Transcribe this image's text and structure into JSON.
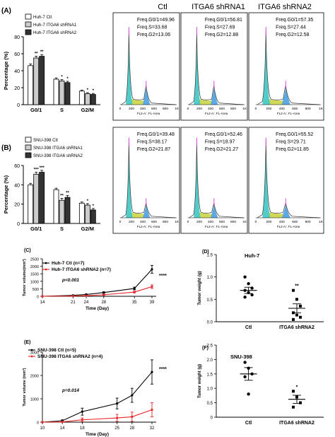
{
  "panel_letters": {
    "A": "(A)",
    "B": "(B)",
    "C": "(C)",
    "D": "(D)",
    "E": "(E)",
    "F": "(F)"
  },
  "flow_titles": [
    "Ctl",
    "ITGA6 shRNA1",
    "ITGA6 shRNA2"
  ],
  "flow_axis": {
    "xlabel": "FL2-A:: FL-Area",
    "ticks": [
      "0",
      "200",
      "400",
      "600",
      "800",
      "1K"
    ]
  },
  "colors": {
    "ctl": "#ffffff",
    "sh1": "#cccccc",
    "sh2": "#333333",
    "red": "#e8262a",
    "black": "#000000",
    "g1_peak": "#3ec7c2",
    "s_phase": "#c8d23a",
    "g2_peak": "#4aa0e0",
    "marker": "#d646d6"
  },
  "chart_data": [
    {
      "id": "A",
      "type": "bar",
      "ylabel": "Percentage (%)",
      "ylim": [
        0,
        80
      ],
      "yticks": [
        "0",
        "20",
        "40",
        "60",
        "80"
      ],
      "categories": [
        "G0/1",
        "S",
        "G2/M"
      ],
      "series": [
        {
          "name": "Huh-7 Ctl",
          "values": [
            46,
            30,
            16
          ],
          "errors": [
            2,
            1.5,
            1.2
          ]
        },
        {
          "name": "Huh-7 ITGA6 shRNA1",
          "values": [
            55,
            28,
            13
          ],
          "errors": [
            2,
            1.5,
            1.2
          ]
        },
        {
          "name": "Huh-7 ITGA6 shRNA2",
          "values": [
            57,
            26,
            12
          ],
          "errors": [
            2,
            1.5,
            1.2
          ]
        }
      ],
      "significance": [
        [
          "",
          "**",
          "**"
        ],
        [
          "",
          "*",
          "*"
        ],
        [
          "",
          "*",
          "*"
        ]
      ],
      "flow_stats": [
        [
          "Freq.G0/1=49.96",
          "Freq.S=33.68",
          "Freq.G2=13.06"
        ],
        [
          "Freq.G0/1=56.81",
          "Freq.S=27.69",
          "Freq.G2=12.88"
        ],
        [
          "Freq.G0/1=57.35",
          "Freq.S=27.44",
          "Freq.G2=12.58"
        ]
      ]
    },
    {
      "id": "B",
      "type": "bar",
      "ylabel": "Percentage (%)",
      "ylim": [
        0,
        60
      ],
      "yticks": [
        "0",
        "20",
        "40",
        "60"
      ],
      "categories": [
        "G0/1",
        "S",
        "G2/M"
      ],
      "series": [
        {
          "name": "SNU-398 Ctl",
          "values": [
            40,
            35,
            21
          ],
          "errors": [
            1.5,
            1.5,
            1.2
          ]
        },
        {
          "name": "SNU-398 ITGA6 shRNA1",
          "values": [
            51,
            24,
            19
          ],
          "errors": [
            2,
            2,
            1.5
          ]
        },
        {
          "name": "SNU-398 ITGA6 shRNA2",
          "values": [
            53,
            27,
            14
          ],
          "errors": [
            2,
            2,
            1.5
          ]
        }
      ],
      "significance": [
        [
          "",
          "***",
          "***"
        ],
        [
          "",
          "**",
          "**"
        ],
        [
          "",
          "*",
          "*"
        ]
      ],
      "flow_stats": [
        [
          "Freq.G0/1=39.48",
          "Freq.S=38.17",
          "Freq.G2=21.87"
        ],
        [
          "Freq.G0/1=52.46",
          "Freq.S=18.97",
          "Freq.G2=21.27"
        ],
        [
          "Freq.G0/1=55.52",
          "Freq.S=29.71",
          "Freq.G2=11.85"
        ]
      ]
    },
    {
      "id": "C",
      "type": "line",
      "xlabel": "Time (Day)",
      "ylabel": "Tumor volume(mm³)",
      "x": [
        14,
        21,
        24,
        28,
        35,
        39
      ],
      "xlim": [
        14,
        39
      ],
      "ylim": [
        0,
        2500
      ],
      "yticks": [
        "0",
        "500",
        "1000",
        "1500",
        "2000",
        "2500"
      ],
      "series": [
        {
          "name": "Huh-7 Ctl (n=7)",
          "values": [
            0,
            60,
            120,
            250,
            520,
            1800
          ],
          "errors": [
            0,
            20,
            30,
            50,
            90,
            260
          ]
        },
        {
          "name": "Huh-7 ITGA6 shRNA2 (n=7)",
          "values": [
            0,
            20,
            40,
            100,
            280,
            640
          ],
          "errors": [
            0,
            10,
            15,
            30,
            60,
            120
          ]
        }
      ],
      "annotation": "p<0.001",
      "sig": "****"
    },
    {
      "id": "D",
      "type": "scatter",
      "title": "Huh-7",
      "ylabel": "Tumor weight (g)",
      "ylim": [
        0,
        1.5
      ],
      "yticks": [
        "0.0",
        "0.5",
        "1.0",
        "1.5"
      ],
      "categories": [
        "Ctl",
        "ITGA6 shRNA2"
      ],
      "points": [
        [
          1.0,
          0.85,
          0.75,
          0.7,
          0.65,
          0.6,
          0.55
        ],
        [
          0.7,
          0.5,
          0.35,
          0.2,
          0.15,
          0.1,
          0.05
        ]
      ],
      "means": [
        0.7,
        0.3
      ],
      "errors": [
        0.07,
        0.1
      ],
      "sig": "**"
    },
    {
      "id": "E",
      "type": "line",
      "xlabel": "Time (Day)",
      "ylabel": "Tumor volume (mm³)",
      "x": [
        10,
        14,
        18,
        25,
        28,
        32
      ],
      "xlim": [
        10,
        32
      ],
      "ylim": [
        0,
        3000
      ],
      "yticks": [
        "0",
        "1000",
        "2000",
        "3000"
      ],
      "series": [
        {
          "name": "SNU-398 Ctl (n=5)",
          "values": [
            0,
            60,
            450,
            800,
            1150,
            2150
          ],
          "errors": [
            0,
            40,
            150,
            230,
            300,
            520
          ]
        },
        {
          "name": "SNU-398 ITGA6 shRNA2 (n=4)",
          "values": [
            0,
            10,
            100,
            180,
            230,
            530
          ],
          "errors": [
            0,
            10,
            80,
            150,
            200,
            300
          ]
        }
      ],
      "annotation": "p=0.014",
      "sig": "****"
    },
    {
      "id": "F",
      "type": "scatter",
      "title": "SNU-398",
      "ylabel": "Tumor weight (g)",
      "ylim": [
        0,
        2.5
      ],
      "yticks": [
        "0",
        "0.5",
        "1.0",
        "1.5",
        "2.0",
        "2.5"
      ],
      "categories": [
        "Ctl",
        "ITGA6 shRNA2"
      ],
      "points": [
        [
          1.9,
          1.7,
          1.5,
          1.4,
          0.8
        ],
        [
          0.9,
          0.7,
          0.5,
          0.35
        ]
      ],
      "means": [
        1.5,
        0.62
      ],
      "errors": [
        0.22,
        0.14
      ],
      "sig": "*"
    }
  ]
}
